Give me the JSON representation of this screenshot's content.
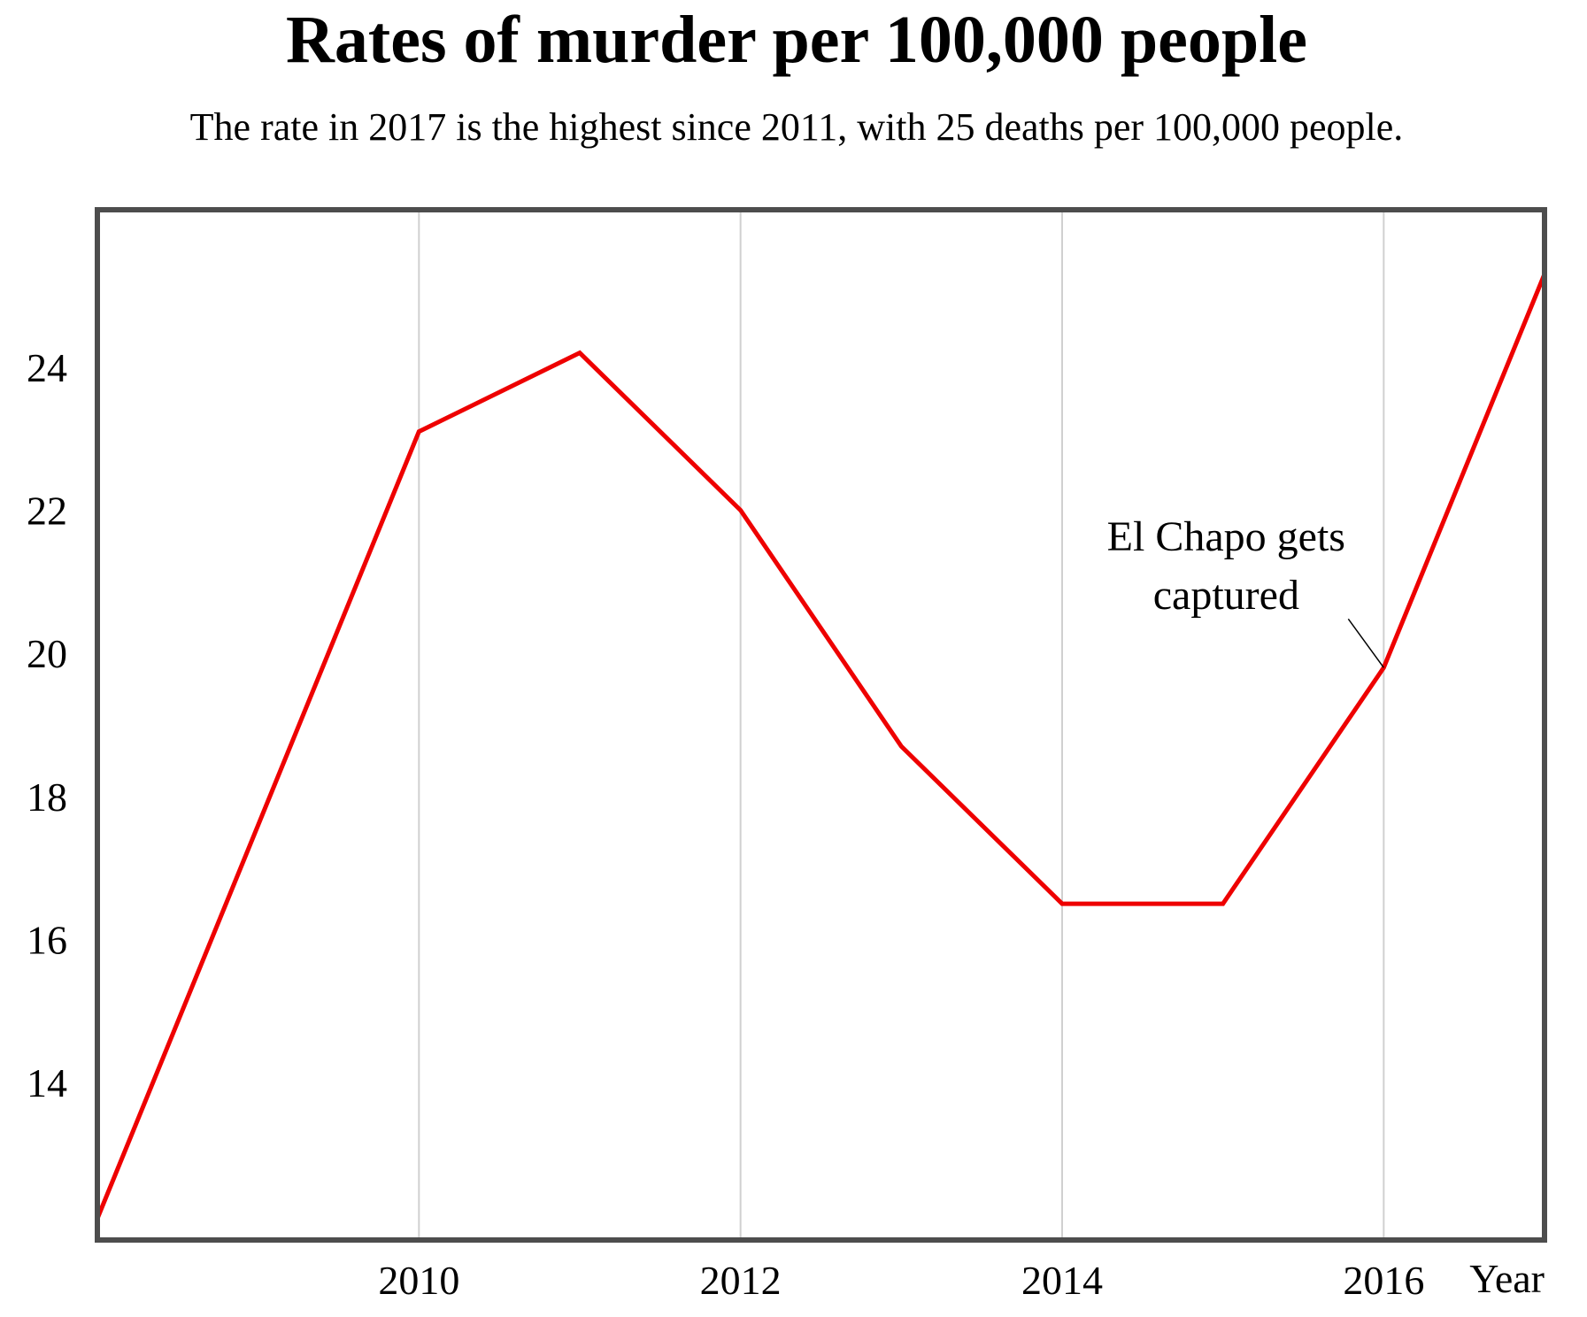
{
  "chart_data": {
    "type": "line",
    "title": "Rates of murder per 100,000 people",
    "subtitle": "The rate in 2017 is the highest since 2011, with 25 deaths per 100,000 people.",
    "xlabel": "Year",
    "ylabel": "",
    "x": [
      2008,
      2009,
      2010,
      2011,
      2012,
      2013,
      2014,
      2015,
      2016,
      2017
    ],
    "series": [
      {
        "values": [
          12.1,
          17.6,
          23.1,
          24.2,
          22.0,
          18.7,
          16.5,
          16.5,
          19.8,
          25.3
        ]
      }
    ],
    "xlim": [
      2008,
      2017
    ],
    "ylim": [
      11.8,
      26.2
    ],
    "x_ticks": [
      2010,
      2012,
      2014,
      2016
    ],
    "x_tick_labels": [
      "2010",
      "2012",
      "2014",
      "2016"
    ],
    "y_ticks": [
      14,
      16,
      18,
      20,
      22,
      24
    ],
    "y_tick_labels": [
      "14",
      "16",
      "18",
      "20",
      "22",
      "24"
    ],
    "grid": "vertical",
    "line_color": "#ee0000",
    "grid_color": "#d0d0d0",
    "frame_color": "#4d4d4d",
    "annotation": {
      "lines": [
        "El Chapo gets",
        "captured"
      ],
      "x": 2016,
      "y": 19.8
    }
  }
}
